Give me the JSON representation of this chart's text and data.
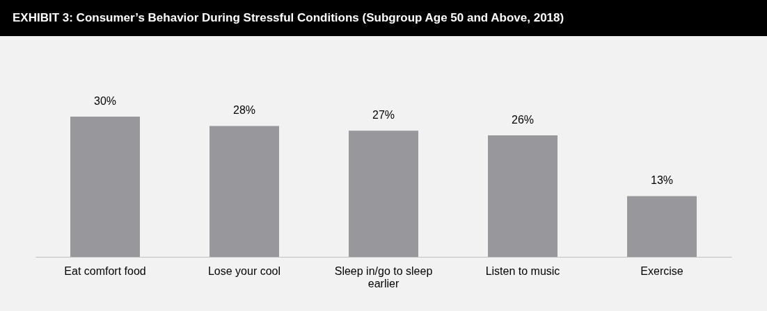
{
  "chart_data": {
    "type": "bar",
    "title": "EXHIBIT 3: Consumer’s Behavior During Stressful Conditions (Subgroup Age 50 and Above, 2018)",
    "categories": [
      "Eat comfort food",
      "Lose your cool",
      "Sleep in/go to sleep earlier",
      "Listen to music",
      "Exercise"
    ],
    "values": [
      30,
      28,
      27,
      26,
      13
    ],
    "value_labels": [
      "30%",
      "28%",
      "27%",
      "26%",
      "13%"
    ],
    "color": "#98979c",
    "grid": false
  }
}
